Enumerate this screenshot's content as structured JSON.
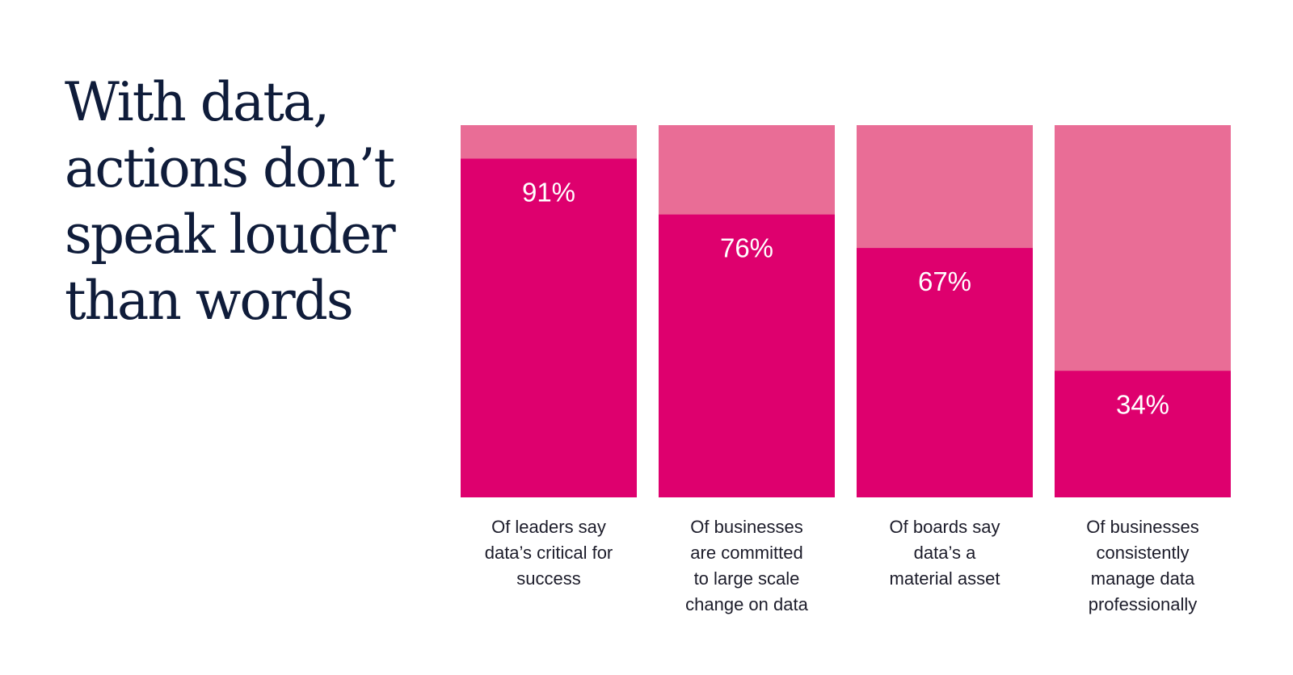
{
  "headline": {
    "lines": [
      "With data,",
      "actions don’t",
      "speak louder",
      "than words"
    ]
  },
  "colors": {
    "headline": "#0f1c3a",
    "bar_fill": "#de006e",
    "bar_remainder": "#e96d96",
    "bar_value_text": "#ffffff",
    "caption_text": "#1c1c2a"
  },
  "chart_data": {
    "type": "bar",
    "stacked_to": 100,
    "ylim": [
      0,
      100
    ],
    "grid": false,
    "categories": [
      [
        "Of leaders say",
        "data’s critical for",
        "success"
      ],
      [
        "Of businesses",
        "are committed",
        "to large scale",
        "change on data"
      ],
      [
        "Of boards say",
        "data’s a",
        "material asset"
      ],
      [
        "Of businesses",
        "consistently",
        "manage data",
        "professionally"
      ]
    ],
    "values": [
      91,
      76,
      67,
      34
    ],
    "value_labels": [
      "91%",
      "76%",
      "67%",
      "34%"
    ]
  }
}
